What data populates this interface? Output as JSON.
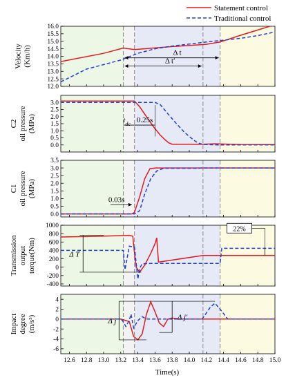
{
  "chart_data": {
    "type": "line",
    "xlabel": "Time(s)",
    "xlim": [
      12.5,
      15.0
    ],
    "xticks": [
      "12.6",
      "12.8",
      "13.0",
      "13.2",
      "13.4",
      "13.6",
      "13.8",
      "14.0",
      "14.2",
      "14.4",
      "14.6",
      "14.8",
      "15.0"
    ],
    "legend": {
      "placement": "top-right",
      "entries": [
        "Statement control",
        "Traditional control"
      ]
    },
    "colors": {
      "statement": "#e31a1c",
      "traditional": "#1f3fd6",
      "phase1": "#ecf7e6",
      "phase2": "#e6eaf7",
      "phase3": "#fcfbe2",
      "dashline": "#8a8a8a"
    },
    "phase_boundaries_s": [
      13.23,
      13.36,
      14.16,
      14.36
    ],
    "panels": [
      {
        "id": "velocity",
        "ylabel_lines": [
          "Velocity",
          "(Km/h)"
        ],
        "ylim": [
          12.0,
          16.0
        ],
        "yticks": [
          "12.0",
          "12.5",
          "13.0",
          "13.5",
          "14.0",
          "14.5",
          "15.0",
          "15.5",
          "16.0"
        ],
        "series": [
          {
            "name": "Statement control",
            "x": [
              12.5,
              13.0,
              13.23,
              13.36,
              13.8,
              14.2,
              14.36,
              14.6,
              15.0
            ],
            "y": [
              13.65,
              14.2,
              14.55,
              14.45,
              14.65,
              14.8,
              14.95,
              15.4,
              16.1
            ]
          },
          {
            "name": "Traditional control",
            "x": [
              12.5,
              12.8,
              13.0,
              13.2,
              13.4,
              13.6,
              13.8,
              14.0,
              14.2,
              14.36,
              14.6,
              14.8,
              15.0
            ],
            "y": [
              12.3,
              13.15,
              13.45,
              13.75,
              14.2,
              14.5,
              14.68,
              14.82,
              14.95,
              15.05,
              15.2,
              15.38,
              15.62
            ]
          }
        ],
        "annotations": [
          "Δ t",
          "Δ t′"
        ]
      },
      {
        "id": "c2",
        "ylabel_lines": [
          "C2",
          "oil pressure",
          "(MPa)"
        ],
        "ylim": [
          -0.5,
          3.5
        ],
        "yticks": [
          "0.0",
          "0.5",
          "1.0",
          "1.5",
          "2.0",
          "2.5",
          "3.0"
        ],
        "series": [
          {
            "name": "Statement control",
            "x": [
              12.5,
              13.36,
              13.42,
              13.5,
              13.58,
              13.66,
              13.72,
              13.76,
              13.8,
              13.9,
              14.0,
              14.1,
              14.16,
              14.3,
              14.6,
              15.0
            ],
            "y": [
              3.1,
              3.1,
              2.7,
              2.0,
              1.3,
              0.7,
              0.35,
              0.15,
              0.05,
              0.05,
              0.05,
              0.04,
              0.05,
              0.08,
              0.03,
              0.02
            ]
          },
          {
            "name": "Traditional control",
            "x": [
              12.5,
              13.6,
              13.66,
              13.75,
              13.85,
              13.95,
              14.05,
              14.1,
              14.16,
              14.36,
              14.6,
              15.0
            ],
            "y": [
              3.0,
              3.0,
              2.85,
              2.2,
              1.5,
              0.85,
              0.35,
              0.15,
              0.03,
              0.0,
              0.0,
              0.0
            ]
          }
        ],
        "annotations": [
          "t",
          "dc",
          "0.25s"
        ]
      },
      {
        "id": "c1",
        "ylabel_lines": [
          "C1",
          "oil pressure",
          "(MPa)"
        ],
        "ylim": [
          -0.2,
          3.5
        ],
        "yticks": [
          "0.0",
          "0.5",
          "1.0",
          "1.5",
          "2.0",
          "2.5",
          "3.0",
          "3.5"
        ],
        "series": [
          {
            "name": "Statement control",
            "x": [
              12.5,
              13.33,
              13.36,
              13.42,
              13.48,
              13.54,
              13.6,
              14.0,
              14.16,
              14.2,
              15.0
            ],
            "y": [
              0.0,
              0.0,
              0.1,
              1.1,
              2.3,
              2.95,
              3.0,
              3.0,
              3.0,
              3.0,
              3.0
            ]
          },
          {
            "name": "Traditional control",
            "x": [
              12.5,
              13.36,
              13.42,
              13.48,
              13.55,
              13.62,
              13.7,
              14.1,
              14.16,
              14.2,
              15.0
            ],
            "y": [
              0.0,
              0.0,
              0.2,
              1.3,
              2.3,
              2.8,
              2.98,
              2.98,
              3.0,
              3.0,
              3.0
            ]
          }
        ],
        "annotations": [
          "0.03s"
        ]
      },
      {
        "id": "torque",
        "ylabel_lines": [
          "Transmission",
          "output",
          "torque(Nm)"
        ],
        "ylim": [
          -450,
          1000
        ],
        "yticks": [
          "-400",
          "-200",
          "0",
          "200",
          "400",
          "600",
          "800",
          "1000"
        ],
        "series": [
          {
            "name": "Statement control",
            "x": [
              12.5,
              13.0,
              13.3,
              13.34,
              13.36,
              13.38,
              13.42,
              13.48,
              13.55,
              13.6,
              13.62,
              13.64,
              14.16,
              14.36,
              15.0
            ],
            "y": [
              720,
              740,
              760,
              740,
              350,
              0,
              -120,
              50,
              330,
              560,
              700,
              120,
              280,
              280,
              280
            ]
          },
          {
            "name": "Traditional control",
            "x": [
              12.5,
              13.23,
              13.25,
              13.3,
              13.36,
              13.4,
              13.42,
              13.45,
              13.55,
              13.7,
              13.9,
              14.1,
              14.36,
              14.38,
              15.0
            ],
            "y": [
              400,
              400,
              -60,
              500,
              480,
              -280,
              -30,
              80,
              90,
              90,
              90,
              90,
              90,
              450,
              450
            ]
          }
        ],
        "annotations": [
          "Δ T",
          "22%"
        ]
      },
      {
        "id": "impact",
        "ylabel_lines": [
          "Impact",
          "degree",
          "(m/s³)"
        ],
        "ylim": [
          -7,
          5
        ],
        "yticks": [
          "-6",
          "-4",
          "-2",
          "0",
          "2",
          "4"
        ],
        "series": [
          {
            "name": "Statement control",
            "x": [
              12.5,
              13.2,
              13.3,
              13.35,
              13.4,
              13.45,
              13.5,
              13.55,
              13.6,
              13.65,
              13.7,
              13.75,
              13.8,
              13.9,
              14.0,
              14.5,
              15.0
            ],
            "y": [
              0.0,
              0.0,
              -0.5,
              -3.5,
              -4.2,
              -3.0,
              1.0,
              3.5,
              1.5,
              -0.8,
              -1.5,
              0.0,
              0.2,
              0.0,
              0.0,
              0.0,
              0.0
            ]
          },
          {
            "name": "Traditional control",
            "x": [
              12.5,
              13.2,
              13.22,
              13.26,
              13.3,
              13.32,
              13.35,
              13.4,
              13.45,
              13.5,
              13.6,
              13.7,
              13.9,
              14.0,
              14.15,
              14.25,
              14.3,
              14.36,
              14.45,
              15.0
            ],
            "y": [
              0.0,
              0.0,
              -0.3,
              -1.5,
              -0.2,
              1.0,
              -1.8,
              -0.3,
              0.5,
              0.0,
              0.0,
              0.0,
              0.0,
              0.0,
              0.0,
              2.5,
              3.2,
              2.0,
              0.0,
              0.0
            ]
          }
        ],
        "annotations": [
          "Δ j",
          "Δ j′"
        ]
      }
    ]
  }
}
